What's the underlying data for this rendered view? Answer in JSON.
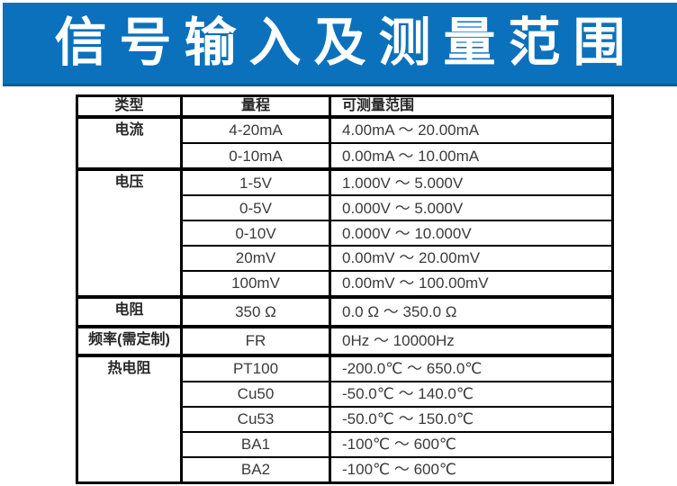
{
  "banner": {
    "title": "信号输入及测量范围",
    "bg_color": "#0b71bc",
    "text_color": "#ffffff"
  },
  "table": {
    "headers": {
      "type": "类型",
      "range": "量程",
      "measurable": "可测量范围"
    },
    "rows": [
      {
        "type": "电流",
        "range": "4-20mA",
        "measurable": "4.00mA ～ 20.00mA"
      },
      {
        "range": "0-10mA",
        "measurable": "0.00mA ～ 10.00mA"
      },
      {
        "type": "电压",
        "range": "1-5V",
        "measurable": "1.000V ～ 5.000V"
      },
      {
        "range": "0-5V",
        "measurable": "0.000V ～ 5.000V"
      },
      {
        "range": "0-10V",
        "measurable": "0.000V ～ 10.000V"
      },
      {
        "range": "20mV",
        "measurable": "0.00mV ～ 20.00mV"
      },
      {
        "range": "100mV",
        "measurable": "0.00mV ～ 100.00mV"
      },
      {
        "type": "电阻",
        "range": "350 Ω",
        "measurable": "0.0 Ω ～ 350.0 Ω"
      },
      {
        "type": "频率(需定制)",
        "range": "FR",
        "measurable": "0Hz ～ 10000Hz"
      },
      {
        "type": "热电阻",
        "range": "PT100",
        "measurable": "-200.0℃ ～ 650.0℃"
      },
      {
        "range": "Cu50",
        "measurable": "-50.0℃ ～ 140.0℃"
      },
      {
        "range": "Cu53",
        "measurable": "-50.0℃ ～ 150.0℃"
      },
      {
        "range": "BA1",
        "measurable": "-100℃ ～ 600℃"
      },
      {
        "range": "BA2",
        "measurable": "-100℃ ～ 600℃"
      }
    ]
  }
}
